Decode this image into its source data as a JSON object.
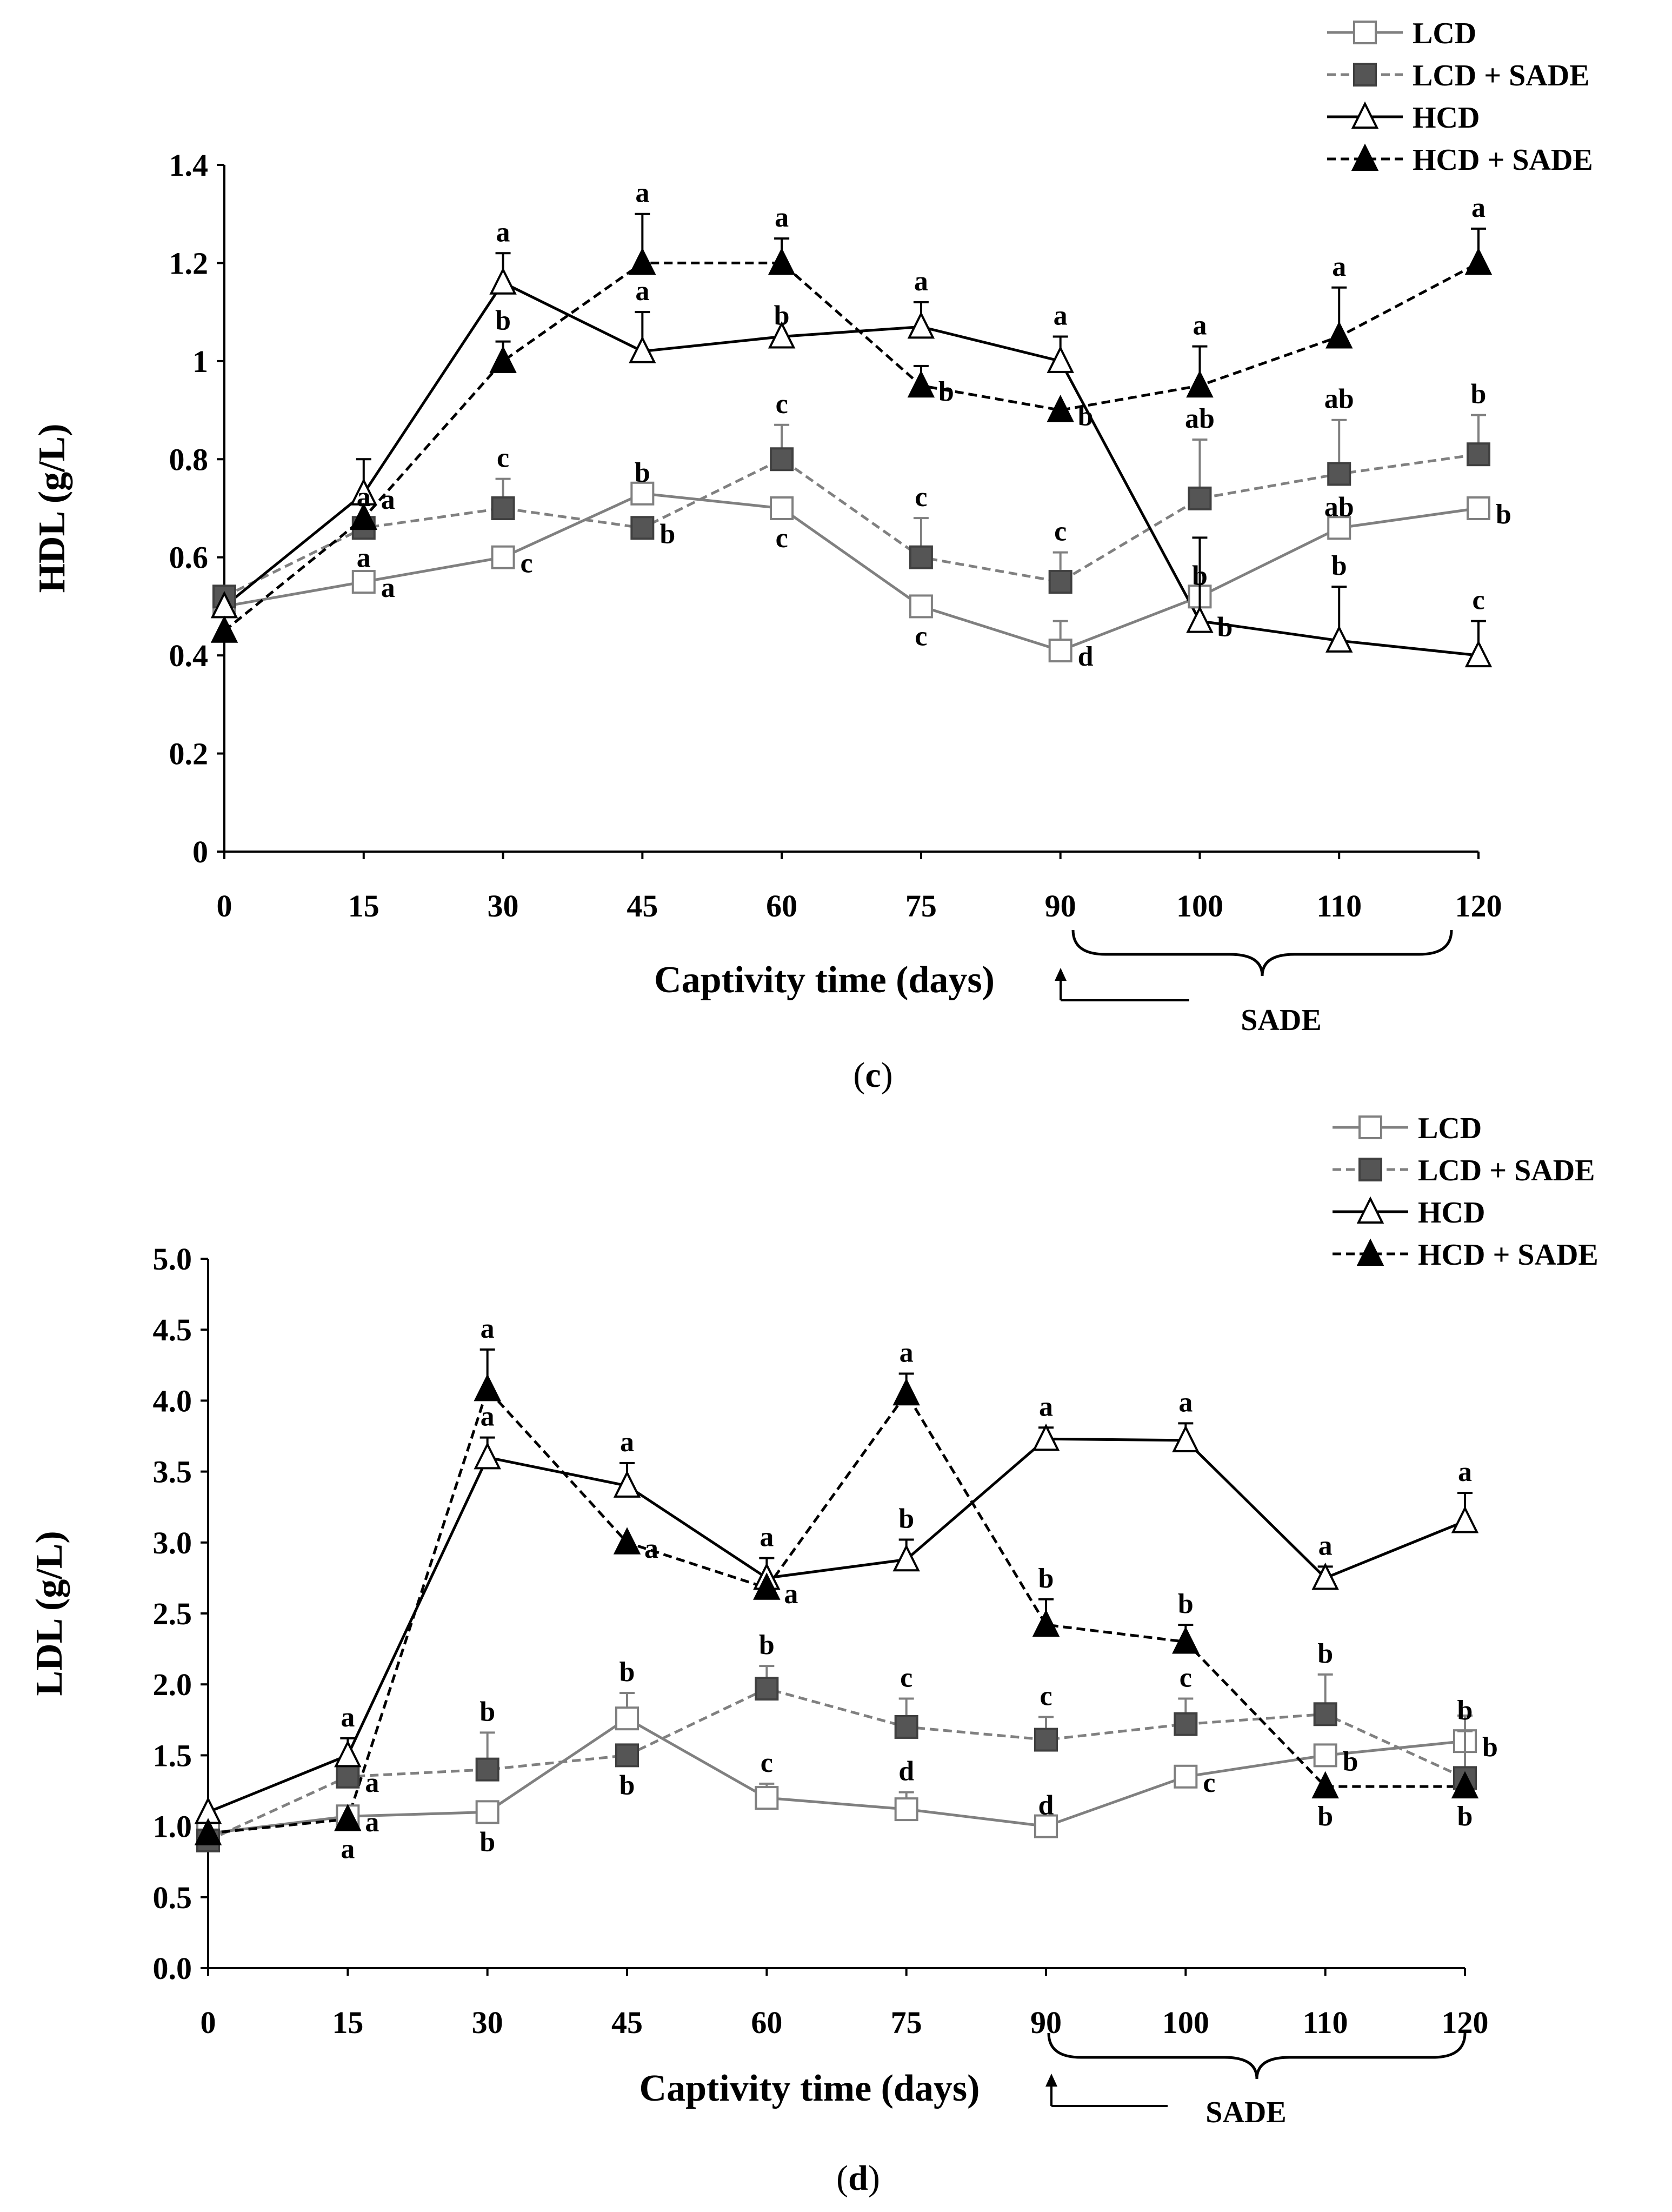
{
  "chart_data": [
    {
      "type": "line",
      "panel": "c",
      "ylabel": "HDL (g/L)",
      "xlabel": "Captivity time (days)",
      "ylim": [
        0,
        1.4
      ],
      "yticks": [
        "0",
        "0.2",
        "0.4",
        "0.6",
        "0.8",
        "1",
        "1.2",
        "1.4"
      ],
      "categories": [
        "0",
        "15",
        "30",
        "45",
        "60",
        "75",
        "90",
        "100",
        "110",
        "120"
      ],
      "annotation": "SADE",
      "series": [
        {
          "name": "LCD",
          "marker": "open-square",
          "color": "#808080",
          "dash": false,
          "values": [
            0.5,
            0.55,
            0.6,
            0.73,
            0.7,
            0.5,
            0.41,
            0.52,
            0.66,
            0.7
          ],
          "errors": [
            0,
            0,
            0,
            0,
            0,
            0,
            0.06,
            0,
            0,
            0
          ],
          "letters": [
            "",
            "a",
            "c",
            "b",
            "c",
            "c",
            "d",
            "b",
            "ab",
            "b"
          ]
        },
        {
          "name": "LCD + SADE",
          "marker": "filled-square",
          "color": "#808080",
          "dash": true,
          "values": [
            0.52,
            0.66,
            0.7,
            0.66,
            0.8,
            0.6,
            0.55,
            0.72,
            0.77,
            0.81
          ],
          "errors": [
            0,
            0,
            0.06,
            0,
            0.07,
            0.08,
            0.06,
            0.12,
            0.11,
            0.08
          ],
          "letters": [
            "",
            "a",
            "c",
            "b",
            "c",
            "c",
            "c",
            "ab",
            "ab",
            "b"
          ]
        },
        {
          "name": "HCD",
          "marker": "open-triangle",
          "color": "#000000",
          "dash": false,
          "values": [
            0.5,
            0.73,
            1.16,
            1.02,
            1.05,
            1.07,
            1.0,
            0.47,
            0.43,
            0.4
          ],
          "errors": [
            0,
            0.07,
            0.06,
            0.08,
            0,
            0.05,
            0.05,
            0.17,
            0.11,
            0.07
          ],
          "letters": [
            "",
            "a",
            "a",
            "a",
            "b",
            "a",
            "a",
            "b",
            "b",
            "c"
          ]
        },
        {
          "name": "HCD + SADE",
          "marker": "filled-triangle",
          "color": "#000000",
          "dash": true,
          "values": [
            0.45,
            0.68,
            1.0,
            1.2,
            1.2,
            0.95,
            0.9,
            0.95,
            1.05,
            1.2
          ],
          "errors": [
            0,
            0,
            0.04,
            0.1,
            0.05,
            0.04,
            0,
            0.08,
            0.1,
            0.07
          ],
          "letters": [
            "",
            "a",
            "b",
            "a",
            "a",
            "b",
            "b",
            "a",
            "a",
            "a"
          ]
        }
      ]
    },
    {
      "type": "line",
      "panel": "d",
      "ylabel": "LDL  (g/L)",
      "xlabel": "Captivity time (days)",
      "ylim": [
        0,
        5
      ],
      "yticks": [
        "0.0",
        "0.5",
        "1.0",
        "1.5",
        "2.0",
        "2.5",
        "3.0",
        "3.5",
        "4.0",
        "4.5",
        "5.0"
      ],
      "categories": [
        "0",
        "15",
        "30",
        "45",
        "60",
        "75",
        "90",
        "100",
        "110",
        "120"
      ],
      "annotation": "SADE",
      "series": [
        {
          "name": "LCD",
          "marker": "open-square",
          "color": "#808080",
          "dash": false,
          "values": [
            0.95,
            1.07,
            1.1,
            1.76,
            1.2,
            1.12,
            1.0,
            1.35,
            1.5,
            1.6
          ],
          "errors": [
            0,
            0,
            0,
            0.18,
            0.1,
            0.12,
            0,
            0,
            0,
            0.18
          ],
          "letters": [
            "",
            "a",
            "b",
            "b",
            "c",
            "d",
            "d",
            "c",
            "b",
            "b"
          ]
        },
        {
          "name": "LCD + SADE",
          "marker": "filled-square",
          "color": "#808080",
          "dash": true,
          "values": [
            0.9,
            1.35,
            1.4,
            1.5,
            1.97,
            1.7,
            1.61,
            1.72,
            1.79,
            1.34
          ],
          "errors": [
            0,
            0.1,
            0.26,
            0,
            0.16,
            0.2,
            0.16,
            0.18,
            0.28,
            0.33
          ],
          "letters": [
            "",
            "a",
            "b",
            "b",
            "b",
            "c",
            "c",
            "c",
            "b",
            "b"
          ]
        },
        {
          "name": "HCD",
          "marker": "open-triangle",
          "color": "#000000",
          "dash": false,
          "values": [
            1.1,
            1.5,
            3.6,
            3.4,
            2.75,
            2.88,
            3.73,
            3.72,
            2.75,
            3.15
          ],
          "errors": [
            0,
            0.12,
            0.14,
            0.16,
            0.14,
            0.14,
            0.08,
            0.12,
            0.08,
            0.2
          ],
          "letters": [
            "",
            "a",
            "a",
            "a",
            "a",
            "b",
            "a",
            "a",
            "a",
            "a"
          ]
        },
        {
          "name": "HCD + SADE",
          "marker": "filled-triangle",
          "color": "#000000",
          "dash": true,
          "values": [
            0.95,
            1.05,
            4.08,
            3.0,
            2.68,
            4.05,
            2.42,
            2.3,
            1.28,
            1.28
          ],
          "errors": [
            0,
            0,
            0.28,
            0,
            0,
            0.14,
            0.18,
            0.12,
            0,
            0
          ],
          "letters": [
            "",
            "a",
            "a",
            "a",
            "a",
            "a",
            "b",
            "b",
            "b",
            "b"
          ]
        }
      ]
    }
  ],
  "legend": [
    "LCD",
    "LCD + SADE",
    "HCD",
    "HCD + SADE"
  ],
  "captions": {
    "c": {
      "open": "(",
      "letter": "c",
      "close": ")"
    },
    "d": {
      "open": "(",
      "letter": "d",
      "close": ")"
    }
  }
}
